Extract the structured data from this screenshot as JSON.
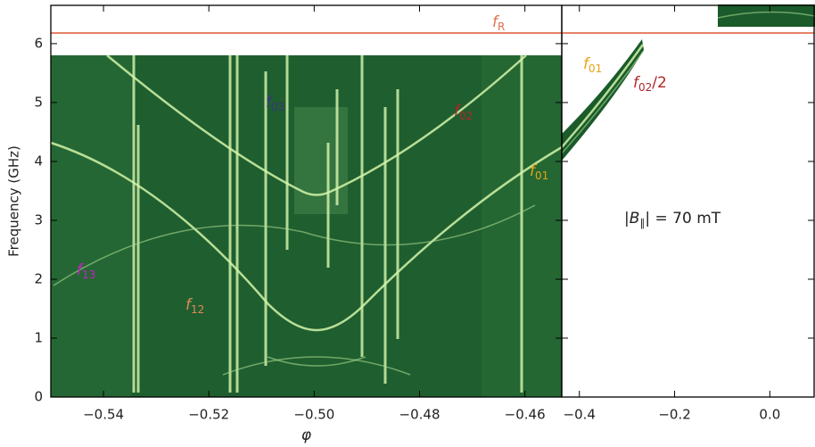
{
  "chart_data": [
    {
      "type": "heatmap",
      "xlabel": "φ",
      "ylabel": "Frequency (GHz)",
      "xlim": [
        -0.55,
        -0.453
      ],
      "ylim": [
        0,
        6.65
      ],
      "xticks": [
        {
          "value": -0.54,
          "label": "−0.54"
        },
        {
          "value": -0.52,
          "label": "−0.52"
        },
        {
          "value": -0.5,
          "label": "−0.50"
        },
        {
          "value": -0.48,
          "label": "−0.48"
        },
        {
          "value": -0.46,
          "label": "−0.46"
        }
      ],
      "yticks": [
        0,
        1,
        2,
        3,
        4,
        5,
        6
      ],
      "hline": 6.18,
      "hline_color": "#e07050",
      "annotations": [
        {
          "main": "f",
          "sub": "R",
          "color": "#e07050"
        },
        {
          "main": "f",
          "sub": "03",
          "color": "#3b3480"
        },
        {
          "main": "f",
          "sub": "02",
          "color": "#b0282a"
        },
        {
          "main": "f",
          "sub": "01",
          "color": "#e8a317"
        },
        {
          "main": "f",
          "sub": "13",
          "color": "#c81ec8"
        },
        {
          "main": "f",
          "sub": "12",
          "color": "#e08a5a"
        }
      ]
    },
    {
      "type": "heatmap",
      "xlim": [
        -0.437,
        0.093
      ],
      "ylim": [
        0,
        6.65
      ],
      "xticks": [
        {
          "value": -0.4,
          "label": "−0.4"
        },
        {
          "value": -0.2,
          "label": "−0.2"
        },
        {
          "value": 0,
          "label": "0.0"
        }
      ],
      "yticks": [
        0,
        1,
        2,
        3,
        4,
        5,
        6
      ],
      "hline": 6.18,
      "hline_color": "#e07050",
      "annotations": [
        {
          "main": "f",
          "sub": "01",
          "color": "#e8a317"
        },
        {
          "main": "f",
          "sub": "02",
          "tail": "/2",
          "color": "#b0282a"
        },
        {
          "main": "|B",
          "sub": "∥",
          "tail": "| = 70 mT",
          "color": "#222"
        }
      ]
    }
  ]
}
